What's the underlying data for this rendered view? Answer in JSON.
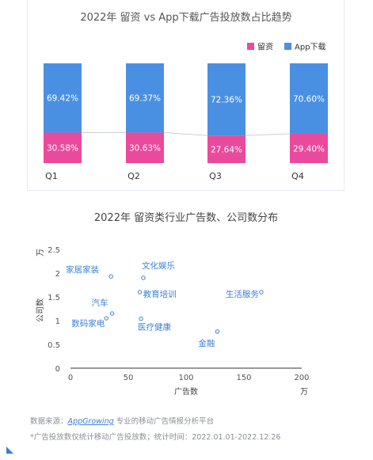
{
  "chart_data": [
    {
      "type": "bar",
      "stacked": true,
      "title": "2022年 留资 vs App下载广告投放数占比趋势",
      "categories": [
        "Q1",
        "Q2",
        "Q3",
        "Q4"
      ],
      "series": [
        {
          "name": "留资",
          "color": "#ea4a9c",
          "values": [
            30.58,
            30.63,
            27.64,
            29.4
          ],
          "labels": [
            "30.58%",
            "30.63%",
            "27.64%",
            "29.40%"
          ]
        },
        {
          "name": "App下载",
          "color": "#4a90e2",
          "values": [
            69.42,
            69.37,
            72.36,
            70.6
          ],
          "labels": [
            "69.42%",
            "69.37%",
            "72.36%",
            "70.60%"
          ]
        }
      ],
      "ylim": [
        0,
        100
      ],
      "legend_position": "top-right"
    },
    {
      "type": "scatter",
      "title": "2022年 留资类行业广告数、公司数分布",
      "xlabel": "广告数",
      "ylabel": "公司数",
      "x_unit": "万",
      "y_unit": "万",
      "xlim": [
        0,
        200
      ],
      "ylim": [
        0,
        2.5
      ],
      "x_ticks": [
        "0",
        "50",
        "100",
        "150",
        "200"
      ],
      "y_ticks": [
        "0",
        "0.5",
        "1",
        "1.5",
        "2",
        "2.5"
      ],
      "points": [
        {
          "label": "家居家装",
          "x": 35,
          "y": 1.93
        },
        {
          "label": "文化娱乐",
          "x": 63,
          "y": 1.9
        },
        {
          "label": "教育培训",
          "x": 60,
          "y": 1.6
        },
        {
          "label": "汽车",
          "x": 36,
          "y": 1.15
        },
        {
          "label": "数码家电",
          "x": 31,
          "y": 1.05
        },
        {
          "label": "医疗健康",
          "x": 61,
          "y": 1.04
        },
        {
          "label": "生活服务",
          "x": 165,
          "y": 1.6
        },
        {
          "label": "金融",
          "x": 127,
          "y": 0.77
        }
      ],
      "point_color": "#3b7fd6"
    }
  ],
  "footer": {
    "source_prefix": "数据来源：",
    "source_brand": "AppGrowing",
    "source_suffix": " 专业的移动广告情报分析平台",
    "note": "*广告投放数仅统计移动广告投放数；统计时间：2022.01.01-2022.12.26"
  }
}
